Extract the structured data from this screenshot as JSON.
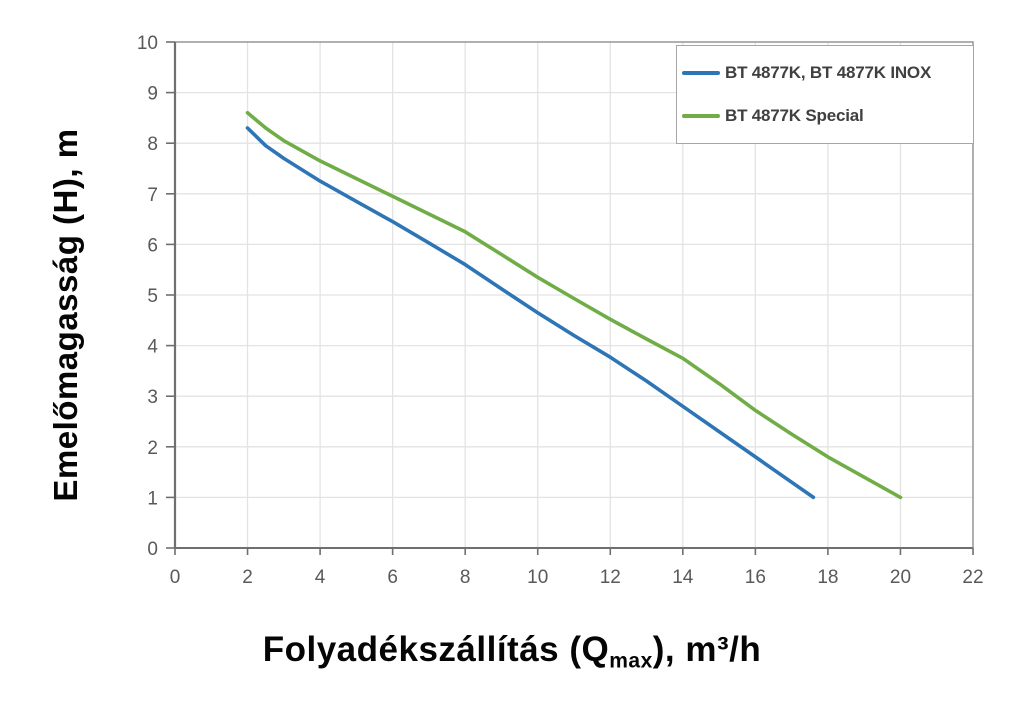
{
  "chart_data": {
    "type": "line",
    "title": "",
    "xlabel": {
      "prefix": "Folyadékszállítás (Q",
      "sub": "max",
      "suffix": "), m³/h"
    },
    "ylabel": "Emelőmagasság (H), m",
    "xlim": [
      0,
      22
    ],
    "ylim": [
      0,
      10
    ],
    "x_ticks": [
      0,
      2,
      4,
      6,
      8,
      10,
      12,
      14,
      16,
      18,
      20,
      22
    ],
    "y_ticks": [
      0,
      1,
      2,
      3,
      4,
      5,
      6,
      7,
      8,
      9,
      10
    ],
    "grid": {
      "vertical_every": 2,
      "horizontal_every": 1,
      "on": true
    },
    "legend_position": "top-right",
    "series": [
      {
        "name": "BT 4877K, BT 4877K INOX",
        "color": "#2E75B6",
        "points": [
          [
            2,
            8.3
          ],
          [
            2.5,
            7.95
          ],
          [
            3,
            7.7
          ],
          [
            4,
            7.25
          ],
          [
            5,
            6.85
          ],
          [
            6,
            6.45
          ],
          [
            7,
            6.03
          ],
          [
            8,
            5.6
          ],
          [
            9,
            5.12
          ],
          [
            10,
            4.65
          ],
          [
            11,
            4.2
          ],
          [
            12,
            3.77
          ],
          [
            13,
            3.3
          ],
          [
            14,
            2.8
          ],
          [
            15,
            2.3
          ],
          [
            16,
            1.8
          ],
          [
            17,
            1.3
          ],
          [
            17.6,
            1.0
          ]
        ]
      },
      {
        "name": "BT 4877K Special",
        "color": "#70AD47",
        "points": [
          [
            2,
            8.6
          ],
          [
            2.5,
            8.3
          ],
          [
            3,
            8.05
          ],
          [
            4,
            7.65
          ],
          [
            5,
            7.3
          ],
          [
            6,
            6.95
          ],
          [
            7,
            6.6
          ],
          [
            8,
            6.25
          ],
          [
            9,
            5.8
          ],
          [
            10,
            5.35
          ],
          [
            11,
            4.93
          ],
          [
            12,
            4.52
          ],
          [
            13,
            4.13
          ],
          [
            14,
            3.75
          ],
          [
            15,
            3.25
          ],
          [
            16,
            2.72
          ],
          [
            17,
            2.25
          ],
          [
            18,
            1.8
          ],
          [
            19,
            1.4
          ],
          [
            20,
            1.0
          ]
        ]
      }
    ],
    "colors": {
      "grid": "#E3E3E3",
      "axis": "#6F6F6F",
      "plot_border": "#8F8F8F",
      "tick_text": "#595959",
      "legend_border": "#A6A6A6",
      "legend_text": "#404040",
      "series_blue": "#2E75B6",
      "series_green": "#70AD47"
    }
  }
}
